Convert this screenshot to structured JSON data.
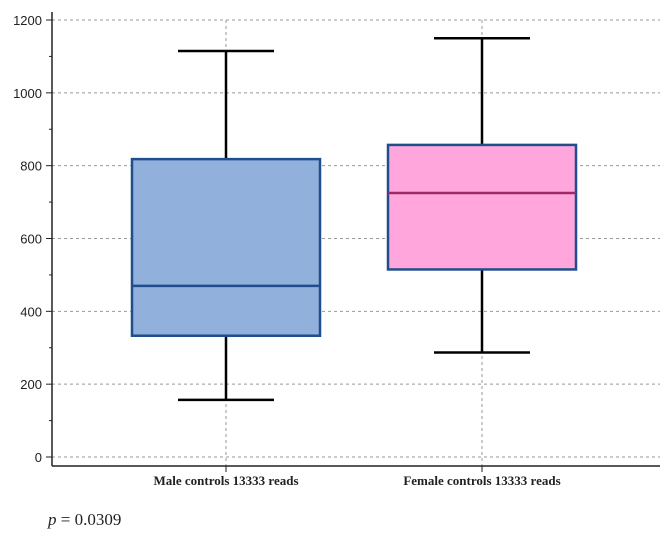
{
  "chart_data": {
    "type": "box",
    "ylim": [
      0,
      1200
    ],
    "yticks": [
      0,
      200,
      400,
      600,
      800,
      1000,
      1200
    ],
    "grid": true,
    "categories": [
      "Male controls 13333 reads",
      "Female controls 13333 reads"
    ],
    "boxes": [
      {
        "label": "Male controls 13333 reads",
        "whisker_low": 157,
        "q1": 333,
        "median": 470,
        "q3": 818,
        "whisker_high": 1115,
        "fill": "#92b0dc",
        "median_color": "#1f4e8c",
        "border": "#1f4e8c"
      },
      {
        "label": "Female controls 13333 reads",
        "whisker_low": 287,
        "q1": 515,
        "median": 725,
        "q3": 857,
        "whisker_high": 1150,
        "fill": "#ffa6dc",
        "median_color": "#9b2a6a",
        "border": "#1f4e8c"
      }
    ]
  },
  "annotation": {
    "p_symbol": "p",
    "p_text": " = 0.0309"
  }
}
